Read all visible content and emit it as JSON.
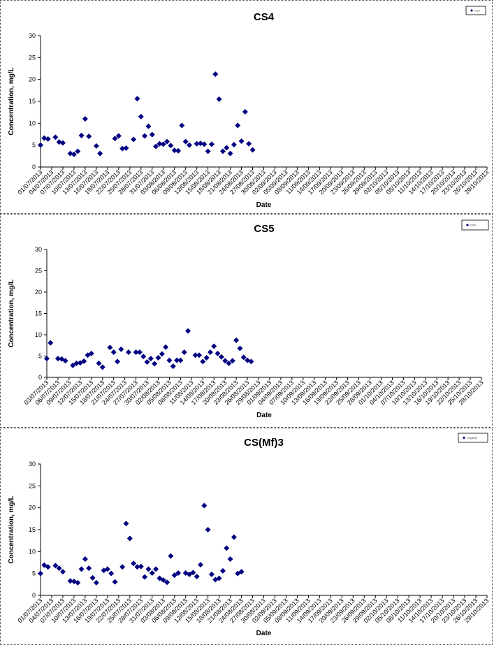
{
  "chart_data": [
    {
      "type": "scatter",
      "title": "CS4",
      "xlabel": "Date",
      "ylabel": "Concentration, mg/L",
      "ylim": [
        0,
        30
      ],
      "yticks": [
        "0",
        "5",
        "10",
        "15",
        "20",
        "25",
        "30"
      ],
      "grid": false,
      "legend": "top-right",
      "marker_color": "#000080",
      "legend_label": "CS4",
      "x_tick_labels": [
        "01/07/2013",
        "04/07/2013",
        "07/07/2013",
        "10/07/2013",
        "13/07/2013",
        "16/07/2013",
        "19/07/2013",
        "22/07/2013",
        "25/07/2013",
        "28/07/2013",
        "31/07/2013",
        "03/08/2013",
        "06/08/2013",
        "09/08/2013",
        "12/08/2013",
        "15/08/2013",
        "18/08/2013",
        "21/08/2013",
        "24/08/2013",
        "27/08/2013",
        "30/08/2013",
        "02/09/2013",
        "05/09/2013",
        "08/09/2013",
        "11/09/2013",
        "14/09/2013",
        "17/09/2013",
        "20/09/2013",
        "23/09/2013",
        "26/09/2013",
        "29/09/2013",
        "02/10/2013",
        "05/10/2013",
        "08/10/2013",
        "11/10/2013",
        "14/10/2013",
        "17/10/2013",
        "20/10/2013",
        "23/10/2013",
        "26/10/2013",
        "29/10/2013"
      ],
      "points": [
        {
          "x": "01/07/2013",
          "y": 5.0
        },
        {
          "x": "02/07/2013",
          "y": 6.6
        },
        {
          "x": "03/07/2013",
          "y": 6.4
        },
        {
          "x": "05/07/2013",
          "y": 6.8
        },
        {
          "x": "06/07/2013",
          "y": 5.7
        },
        {
          "x": "07/07/2013",
          "y": 5.5
        },
        {
          "x": "09/07/2013",
          "y": 3.1
        },
        {
          "x": "10/07/2013",
          "y": 2.9
        },
        {
          "x": "11/07/2013",
          "y": 3.6
        },
        {
          "x": "12/07/2013",
          "y": 7.2
        },
        {
          "x": "13/07/2013",
          "y": 11.0
        },
        {
          "x": "14/07/2013",
          "y": 7.0
        },
        {
          "x": "16/07/2013",
          "y": 4.8
        },
        {
          "x": "17/07/2013",
          "y": 3.1
        },
        {
          "x": "21/07/2013",
          "y": 6.5
        },
        {
          "x": "22/07/2013",
          "y": 7.1
        },
        {
          "x": "23/07/2013",
          "y": 4.2
        },
        {
          "x": "24/07/2013",
          "y": 4.3
        },
        {
          "x": "26/07/2013",
          "y": 6.3
        },
        {
          "x": "27/07/2013",
          "y": 15.6
        },
        {
          "x": "28/07/2013",
          "y": 11.5
        },
        {
          "x": "29/07/2013",
          "y": 7.1
        },
        {
          "x": "30/07/2013",
          "y": 9.3
        },
        {
          "x": "31/07/2013",
          "y": 7.4
        },
        {
          "x": "01/08/2013",
          "y": 4.7
        },
        {
          "x": "02/08/2013",
          "y": 5.3
        },
        {
          "x": "03/08/2013",
          "y": 5.2
        },
        {
          "x": "04/08/2013",
          "y": 5.8
        },
        {
          "x": "05/08/2013",
          "y": 4.9
        },
        {
          "x": "06/08/2013",
          "y": 3.8
        },
        {
          "x": "07/08/2013",
          "y": 3.7
        },
        {
          "x": "08/08/2013",
          "y": 9.5
        },
        {
          "x": "09/08/2013",
          "y": 5.8
        },
        {
          "x": "10/08/2013",
          "y": 5.0
        },
        {
          "x": "12/08/2013",
          "y": 5.3
        },
        {
          "x": "13/08/2013",
          "y": 5.4
        },
        {
          "x": "14/08/2013",
          "y": 5.2
        },
        {
          "x": "15/08/2013",
          "y": 3.6
        },
        {
          "x": "16/08/2013",
          "y": 5.2
        },
        {
          "x": "17/08/2013",
          "y": 21.2
        },
        {
          "x": "18/08/2013",
          "y": 15.5
        },
        {
          "x": "19/08/2013",
          "y": 3.6
        },
        {
          "x": "20/08/2013",
          "y": 4.4
        },
        {
          "x": "21/08/2013",
          "y": 3.1
        },
        {
          "x": "22/08/2013",
          "y": 5.1
        },
        {
          "x": "23/08/2013",
          "y": 9.5
        },
        {
          "x": "24/08/2013",
          "y": 5.9
        },
        {
          "x": "25/08/2013",
          "y": 12.6
        },
        {
          "x": "26/08/2013",
          "y": 5.3
        },
        {
          "x": "27/08/2013",
          "y": 3.9
        }
      ]
    },
    {
      "type": "scatter",
      "title": "CS5",
      "xlabel": "Date",
      "ylabel": "Concentration, mg/L",
      "ylim": [
        0,
        30
      ],
      "yticks": [
        "0",
        "5",
        "10",
        "15",
        "20",
        "25",
        "30"
      ],
      "grid": false,
      "legend": "top-right",
      "marker_color": "#000080",
      "legend_label": "CS5",
      "x_tick_labels": [
        "03/07/2013",
        "06/07/2013",
        "09/07/2013",
        "12/07/2013",
        "15/07/2013",
        "18/07/2013",
        "21/07/2013",
        "24/07/2013",
        "27/07/2013",
        "30/07/2013",
        "02/08/2013",
        "05/08/2013",
        "08/08/2013",
        "11/08/2013",
        "14/08/2013",
        "17/08/2013",
        "20/08/2013",
        "23/08/2013",
        "26/08/2013",
        "29/08/2013",
        "01/09/2013",
        "04/09/2013",
        "07/09/2013",
        "10/09/2013",
        "13/09/2013",
        "16/09/2013",
        "19/09/2013",
        "22/09/2013",
        "25/09/2013",
        "28/09/2013",
        "01/10/2013",
        "04/10/2013",
        "07/10/2013",
        "10/10/2013",
        "13/10/2013",
        "16/10/2013",
        "19/10/2013",
        "22/10/2013",
        "25/10/2013",
        "28/10/2013"
      ],
      "points": [
        {
          "x": "03/07/2013",
          "y": 4.4
        },
        {
          "x": "04/07/2013",
          "y": 8.1
        },
        {
          "x": "06/07/2013",
          "y": 4.4
        },
        {
          "x": "07/07/2013",
          "y": 4.3
        },
        {
          "x": "08/07/2013",
          "y": 3.9
        },
        {
          "x": "10/07/2013",
          "y": 2.8
        },
        {
          "x": "11/07/2013",
          "y": 3.3
        },
        {
          "x": "12/07/2013",
          "y": 3.4
        },
        {
          "x": "13/07/2013",
          "y": 3.8
        },
        {
          "x": "14/07/2013",
          "y": 5.2
        },
        {
          "x": "15/07/2013",
          "y": 5.6
        },
        {
          "x": "17/07/2013",
          "y": 3.3
        },
        {
          "x": "18/07/2013",
          "y": 2.4
        },
        {
          "x": "20/07/2013",
          "y": 7.0
        },
        {
          "x": "21/07/2013",
          "y": 5.9
        },
        {
          "x": "22/07/2013",
          "y": 3.7
        },
        {
          "x": "23/07/2013",
          "y": 6.6
        },
        {
          "x": "25/07/2013",
          "y": 5.9
        },
        {
          "x": "27/07/2013",
          "y": 5.9
        },
        {
          "x": "28/07/2013",
          "y": 5.9
        },
        {
          "x": "29/07/2013",
          "y": 4.9
        },
        {
          "x": "30/07/2013",
          "y": 3.6
        },
        {
          "x": "31/07/2013",
          "y": 4.4
        },
        {
          "x": "01/08/2013",
          "y": 3.2
        },
        {
          "x": "02/08/2013",
          "y": 4.6
        },
        {
          "x": "03/08/2013",
          "y": 5.5
        },
        {
          "x": "04/08/2013",
          "y": 7.1
        },
        {
          "x": "05/08/2013",
          "y": 4.0
        },
        {
          "x": "06/08/2013",
          "y": 2.6
        },
        {
          "x": "07/08/2013",
          "y": 4.0
        },
        {
          "x": "08/08/2013",
          "y": 4.0
        },
        {
          "x": "09/08/2013",
          "y": 5.9
        },
        {
          "x": "10/08/2013",
          "y": 10.9
        },
        {
          "x": "12/08/2013",
          "y": 5.2
        },
        {
          "x": "13/08/2013",
          "y": 5.2
        },
        {
          "x": "14/08/2013",
          "y": 3.7
        },
        {
          "x": "15/08/2013",
          "y": 4.6
        },
        {
          "x": "16/08/2013",
          "y": 5.9
        },
        {
          "x": "17/08/2013",
          "y": 7.3
        },
        {
          "x": "18/08/2013",
          "y": 5.6
        },
        {
          "x": "19/08/2013",
          "y": 4.8
        },
        {
          "x": "20/08/2013",
          "y": 3.9
        },
        {
          "x": "21/08/2013",
          "y": 3.3
        },
        {
          "x": "22/08/2013",
          "y": 3.9
        },
        {
          "x": "23/08/2013",
          "y": 8.7
        },
        {
          "x": "24/08/2013",
          "y": 6.8
        },
        {
          "x": "25/08/2013",
          "y": 4.7
        },
        {
          "x": "26/08/2013",
          "y": 4.0
        },
        {
          "x": "27/08/2013",
          "y": 3.7
        }
      ]
    },
    {
      "type": "scatter",
      "title": "CS(Mf)3",
      "xlabel": "Date",
      "ylabel": "Concentration, mg/L",
      "ylim": [
        0,
        30
      ],
      "yticks": [
        "0",
        "5",
        "10",
        "15",
        "20",
        "25",
        "30"
      ],
      "grid": false,
      "legend": "top-right",
      "marker_color": "#000080",
      "legend_label": "CS(Mf)3",
      "x_tick_labels": [
        "01/07/2013",
        "04/07/2013",
        "07/07/2013",
        "10/07/2013",
        "13/07/2013",
        "16/07/2013",
        "19/07/2013",
        "22/07/2013",
        "25/07/2013",
        "28/07/2013",
        "31/07/2013",
        "03/08/2013",
        "06/08/2013",
        "09/08/2013",
        "12/08/2013",
        "15/08/2013",
        "18/08/2013",
        "21/08/2013",
        "24/08/2013",
        "27/08/2013",
        "30/08/2013",
        "02/09/2013",
        "05/09/2013",
        "08/09/2013",
        "11/09/2013",
        "14/09/2013",
        "17/09/2013",
        "20/09/2013",
        "23/09/2013",
        "26/09/2013",
        "29/09/2013",
        "02/10/2013",
        "05/10/2013",
        "08/10/2013",
        "11/10/2013",
        "14/10/2013",
        "17/10/2013",
        "20/10/2013",
        "23/10/2013",
        "26/10/2013",
        "29/10/2013"
      ],
      "points": [
        {
          "x": "01/07/2013",
          "y": 5.0
        },
        {
          "x": "02/07/2013",
          "y": 6.9
        },
        {
          "x": "03/07/2013",
          "y": 6.5
        },
        {
          "x": "05/07/2013",
          "y": 6.8
        },
        {
          "x": "06/07/2013",
          "y": 6.2
        },
        {
          "x": "07/07/2013",
          "y": 5.4
        },
        {
          "x": "09/07/2013",
          "y": 3.3
        },
        {
          "x": "10/07/2013",
          "y": 3.2
        },
        {
          "x": "11/07/2013",
          "y": 2.9
        },
        {
          "x": "12/07/2013",
          "y": 6.0
        },
        {
          "x": "13/07/2013",
          "y": 8.3
        },
        {
          "x": "14/07/2013",
          "y": 6.2
        },
        {
          "x": "15/07/2013",
          "y": 4.0
        },
        {
          "x": "16/07/2013",
          "y": 2.9
        },
        {
          "x": "18/07/2013",
          "y": 5.7
        },
        {
          "x": "19/07/2013",
          "y": 6.0
        },
        {
          "x": "20/07/2013",
          "y": 5.0
        },
        {
          "x": "21/07/2013",
          "y": 3.1
        },
        {
          "x": "23/07/2013",
          "y": 6.5
        },
        {
          "x": "24/07/2013",
          "y": 16.4
        },
        {
          "x": "25/07/2013",
          "y": 13.0
        },
        {
          "x": "26/07/2013",
          "y": 7.3
        },
        {
          "x": "27/07/2013",
          "y": 6.5
        },
        {
          "x": "28/07/2013",
          "y": 6.6
        },
        {
          "x": "29/07/2013",
          "y": 4.2
        },
        {
          "x": "30/07/2013",
          "y": 6.0
        },
        {
          "x": "31/07/2013",
          "y": 5.1
        },
        {
          "x": "01/08/2013",
          "y": 6.0
        },
        {
          "x": "02/08/2013",
          "y": 3.9
        },
        {
          "x": "03/08/2013",
          "y": 3.5
        },
        {
          "x": "04/08/2013",
          "y": 3.0
        },
        {
          "x": "05/08/2013",
          "y": 9.0
        },
        {
          "x": "06/08/2013",
          "y": 4.6
        },
        {
          "x": "07/08/2013",
          "y": 5.1
        },
        {
          "x": "09/08/2013",
          "y": 5.1
        },
        {
          "x": "10/08/2013",
          "y": 4.8
        },
        {
          "x": "11/08/2013",
          "y": 5.2
        },
        {
          "x": "12/08/2013",
          "y": 4.3
        },
        {
          "x": "13/08/2013",
          "y": 7.0
        },
        {
          "x": "14/08/2013",
          "y": 20.5
        },
        {
          "x": "15/08/2013",
          "y": 15.0
        },
        {
          "x": "16/08/2013",
          "y": 4.8
        },
        {
          "x": "17/08/2013",
          "y": 3.6
        },
        {
          "x": "18/08/2013",
          "y": 3.9
        },
        {
          "x": "19/08/2013",
          "y": 5.6
        },
        {
          "x": "20/08/2013",
          "y": 10.8
        },
        {
          "x": "21/08/2013",
          "y": 8.3
        },
        {
          "x": "22/08/2013",
          "y": 13.3
        },
        {
          "x": "23/08/2013",
          "y": 5.0
        },
        {
          "x": "24/08/2013",
          "y": 5.4
        }
      ]
    }
  ]
}
